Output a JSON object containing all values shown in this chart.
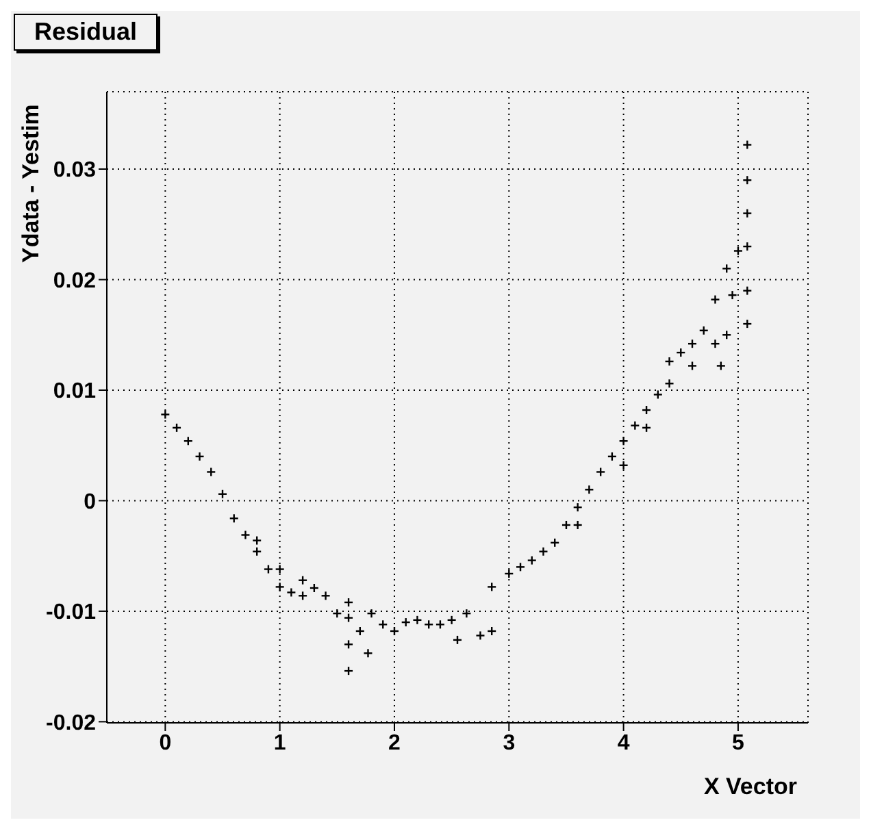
{
  "chart_data": {
    "type": "scatter",
    "title": "Residual",
    "xlabel": "X Vector",
    "ylabel": "Ydata - Yestim",
    "x": [
      0,
      0.1,
      0.2,
      0.3,
      0.4,
      0.5,
      0.6,
      0.7,
      0.8,
      0.9,
      1.0,
      1.1,
      1.2,
      0.8,
      1.0,
      1.2,
      1.3,
      1.4,
      1.5,
      1.6,
      1.6,
      1.6,
      1.6,
      1.7,
      1.77,
      1.8,
      1.9,
      2.0,
      2.1,
      2.2,
      2.3,
      2.4,
      2.5,
      2.55,
      2.63,
      2.75,
      2.85,
      2.85,
      3.0,
      3.1,
      3.2,
      3.3,
      3.4,
      3.5,
      3.6,
      3.6,
      3.7,
      3.8,
      3.9,
      4.0,
      4.0,
      4.1,
      4.2,
      4.2,
      4.3,
      4.4,
      4.4,
      4.5,
      4.6,
      4.6,
      4.7,
      4.8,
      4.8,
      4.85,
      4.9,
      4.9,
      4.95,
      5.0,
      5.08,
      5.08,
      5.08,
      5.08,
      5.08,
      5.08
    ],
    "values": [
      0.0078,
      0.0066,
      0.0054,
      0.004,
      0.0026,
      0.0006,
      -0.0016,
      -0.0031,
      -0.0046,
      -0.0062,
      -0.0078,
      -0.0083,
      -0.0086,
      -0.0036,
      -0.0062,
      -0.0072,
      -0.0079,
      -0.0086,
      -0.0102,
      -0.0106,
      -0.0154,
      -0.013,
      -0.0092,
      -0.0118,
      -0.0138,
      -0.0102,
      -0.0112,
      -0.0118,
      -0.011,
      -0.0108,
      -0.0112,
      -0.0112,
      -0.0108,
      -0.0126,
      -0.0102,
      -0.0122,
      -0.0118,
      -0.0078,
      -0.0066,
      -0.006,
      -0.0054,
      -0.0046,
      -0.0038,
      -0.0022,
      -0.0006,
      -0.0022,
      0.001,
      0.0026,
      0.004,
      0.0054,
      0.0032,
      0.0068,
      0.0082,
      0.0066,
      0.0096,
      0.0126,
      0.0106,
      0.0134,
      0.0142,
      0.0122,
      0.0154,
      0.0182,
      0.0142,
      0.0122,
      0.021,
      0.015,
      0.0186,
      0.0226,
      0.0322,
      0.029,
      0.026,
      0.023,
      0.019,
      0.016
    ],
    "color": "#000000",
    "marker": "cross",
    "grid": true,
    "xlim": [
      -0.51,
      5.61
    ],
    "xticks": [
      0,
      1,
      2,
      3,
      4,
      5
    ],
    "ylim": [
      -0.0201,
      0.037
    ],
    "yticks": [
      -0.02,
      -0.01,
      0,
      0.01,
      0.02,
      0.03
    ]
  }
}
